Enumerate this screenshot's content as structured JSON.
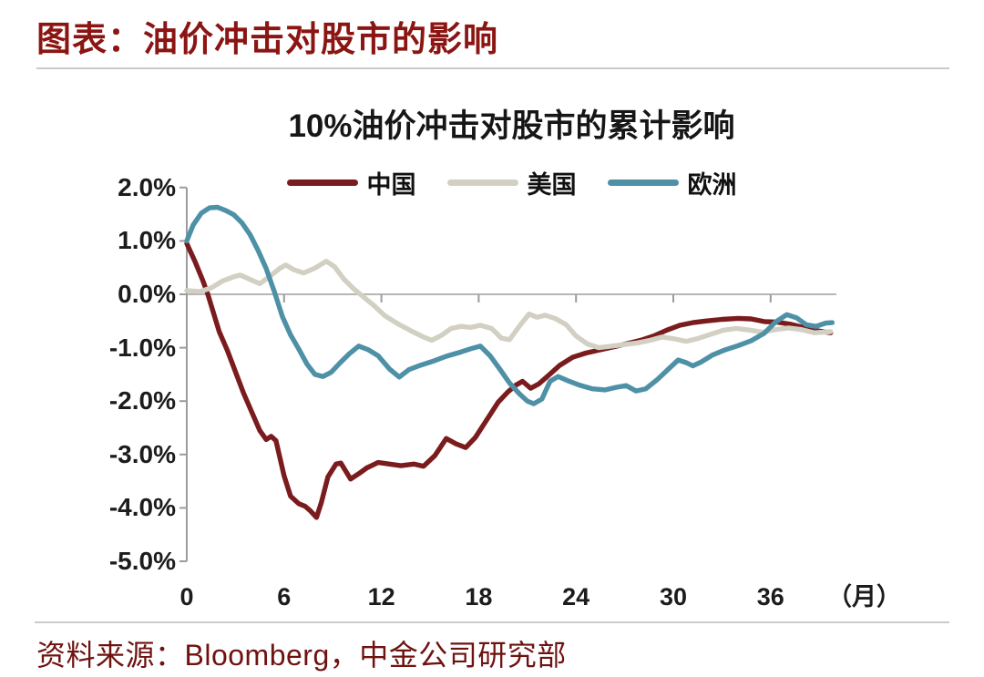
{
  "page": {
    "header_title": "图表：油价冲击对股市的影响",
    "source": "资料来源：Bloomberg，中金公司研究部"
  },
  "colors": {
    "header_text": "#8b1512",
    "source_text": "#6e1310",
    "axis": "#9c9c9c",
    "zero_line": "#ababab",
    "tick_text": "#1c1c1c"
  },
  "chart_data": {
    "type": "line",
    "title": "10%油价冲击对股市的累计影响",
    "xlabel": "（月）",
    "ylabel": "",
    "x_unit": "月",
    "xlim": [
      0,
      40
    ],
    "ylim": [
      -5.0,
      2.0
    ],
    "grid": "zero-line-only",
    "legend_position": "top",
    "y_ticks": [
      {
        "label": "2.0%",
        "value": 2
      },
      {
        "label": "1.0%",
        "value": 1
      },
      {
        "label": "0.0%",
        "value": 0
      },
      {
        "label": "-1.0%",
        "value": -1
      },
      {
        "label": "-2.0%",
        "value": -2
      },
      {
        "label": "-3.0%",
        "value": -3
      },
      {
        "label": "-4.0%",
        "value": -4
      },
      {
        "label": "-5.0%",
        "value": -5
      }
    ],
    "x_ticks": [
      {
        "label": "0",
        "value": 0
      },
      {
        "label": "6",
        "value": 6
      },
      {
        "label": "12",
        "value": 12
      },
      {
        "label": "18",
        "value": 18
      },
      {
        "label": "24",
        "value": 24
      },
      {
        "label": "30",
        "value": 30
      },
      {
        "label": "36",
        "value": 36
      }
    ],
    "series": [
      {
        "id": "china",
        "name": "中国",
        "color": "#7a1b1d",
        "points": [
          [
            0,
            0.95
          ],
          [
            0.5,
            0.62
          ],
          [
            1,
            0.25
          ],
          [
            1.3,
            0
          ],
          [
            2,
            -0.7
          ],
          [
            2.5,
            -1.05
          ],
          [
            3,
            -1.45
          ],
          [
            3.5,
            -1.85
          ],
          [
            4,
            -2.2
          ],
          [
            4.5,
            -2.55
          ],
          [
            4.9,
            -2.72
          ],
          [
            5.2,
            -2.66
          ],
          [
            5.5,
            -2.74
          ],
          [
            6,
            -3.4
          ],
          [
            6.4,
            -3.78
          ],
          [
            6.9,
            -3.92
          ],
          [
            7.3,
            -3.97
          ],
          [
            7.6,
            -4.05
          ],
          [
            8,
            -4.18
          ],
          [
            8.3,
            -3.9
          ],
          [
            8.7,
            -3.42
          ],
          [
            9.2,
            -3.18
          ],
          [
            9.5,
            -3.16
          ],
          [
            10.1,
            -3.46
          ],
          [
            10.6,
            -3.36
          ],
          [
            11.1,
            -3.25
          ],
          [
            11.8,
            -3.15
          ],
          [
            12.5,
            -3.18
          ],
          [
            13.2,
            -3.21
          ],
          [
            14,
            -3.18
          ],
          [
            14.6,
            -3.22
          ],
          [
            15.3,
            -3.02
          ],
          [
            16,
            -2.7
          ],
          [
            16.6,
            -2.8
          ],
          [
            17.2,
            -2.87
          ],
          [
            17.8,
            -2.68
          ],
          [
            18.5,
            -2.35
          ],
          [
            19.2,
            -2.02
          ],
          [
            19.8,
            -1.83
          ],
          [
            20.3,
            -1.7
          ],
          [
            20.7,
            -1.63
          ],
          [
            21.2,
            -1.76
          ],
          [
            21.7,
            -1.68
          ],
          [
            22.3,
            -1.52
          ],
          [
            23,
            -1.33
          ],
          [
            23.8,
            -1.18
          ],
          [
            24.6,
            -1.1
          ],
          [
            25.5,
            -1.04
          ],
          [
            26.4,
            -0.98
          ],
          [
            27.2,
            -0.92
          ],
          [
            28,
            -0.86
          ],
          [
            28.8,
            -0.78
          ],
          [
            29.6,
            -0.67
          ],
          [
            30.4,
            -0.58
          ],
          [
            31.2,
            -0.53
          ],
          [
            32,
            -0.5
          ],
          [
            33,
            -0.47
          ],
          [
            34,
            -0.45
          ],
          [
            34.8,
            -0.46
          ],
          [
            35.6,
            -0.51
          ],
          [
            36.4,
            -0.52
          ],
          [
            37.2,
            -0.56
          ],
          [
            38,
            -0.62
          ],
          [
            38.8,
            -0.68
          ],
          [
            39.7,
            -0.72
          ]
        ]
      },
      {
        "id": "us",
        "name": "美国",
        "color": "#d2d0c3",
        "points": [
          [
            0,
            0.07
          ],
          [
            0.8,
            0.05
          ],
          [
            1.5,
            0.12
          ],
          [
            2.2,
            0.25
          ],
          [
            2.9,
            0.33
          ],
          [
            3.3,
            0.36
          ],
          [
            3.9,
            0.28
          ],
          [
            4.5,
            0.2
          ],
          [
            5.1,
            0.33
          ],
          [
            5.7,
            0.48
          ],
          [
            6.1,
            0.55
          ],
          [
            6.6,
            0.46
          ],
          [
            7.2,
            0.4
          ],
          [
            7.9,
            0.49
          ],
          [
            8.6,
            0.62
          ],
          [
            9.1,
            0.52
          ],
          [
            9.7,
            0.28
          ],
          [
            10.3,
            0.1
          ],
          [
            10.9,
            -0.05
          ],
          [
            11.5,
            -0.2
          ],
          [
            12.2,
            -0.4
          ],
          [
            13,
            -0.55
          ],
          [
            13.8,
            -0.68
          ],
          [
            14.6,
            -0.8
          ],
          [
            15.1,
            -0.86
          ],
          [
            15.7,
            -0.77
          ],
          [
            16.3,
            -0.64
          ],
          [
            16.9,
            -0.6
          ],
          [
            17.5,
            -0.62
          ],
          [
            18.1,
            -0.58
          ],
          [
            18.8,
            -0.64
          ],
          [
            19.4,
            -0.82
          ],
          [
            19.9,
            -0.85
          ],
          [
            20.5,
            -0.6
          ],
          [
            21.1,
            -0.37
          ],
          [
            21.6,
            -0.43
          ],
          [
            22.1,
            -0.39
          ],
          [
            22.7,
            -0.45
          ],
          [
            23.4,
            -0.57
          ],
          [
            24,
            -0.78
          ],
          [
            24.7,
            -0.93
          ],
          [
            25.4,
            -1.0
          ],
          [
            26.2,
            -0.97
          ],
          [
            27,
            -0.94
          ],
          [
            27.8,
            -0.91
          ],
          [
            28.6,
            -0.86
          ],
          [
            29.3,
            -0.8
          ],
          [
            30,
            -0.83
          ],
          [
            30.8,
            -0.88
          ],
          [
            31.5,
            -0.83
          ],
          [
            32.3,
            -0.75
          ],
          [
            33.1,
            -0.67
          ],
          [
            33.9,
            -0.64
          ],
          [
            34.7,
            -0.67
          ],
          [
            35.5,
            -0.71
          ],
          [
            36.3,
            -0.66
          ],
          [
            37.1,
            -0.63
          ],
          [
            37.9,
            -0.66
          ],
          [
            38.7,
            -0.72
          ],
          [
            39.7,
            -0.7
          ]
        ]
      },
      {
        "id": "europe",
        "name": "欧洲",
        "color": "#4e91a7",
        "points": [
          [
            0,
            1.0
          ],
          [
            0.4,
            1.3
          ],
          [
            0.9,
            1.52
          ],
          [
            1.4,
            1.62
          ],
          [
            1.9,
            1.63
          ],
          [
            2.4,
            1.57
          ],
          [
            2.9,
            1.49
          ],
          [
            3.4,
            1.34
          ],
          [
            3.9,
            1.12
          ],
          [
            4.4,
            0.82
          ],
          [
            4.9,
            0.48
          ],
          [
            5.4,
            0.05
          ],
          [
            5.9,
            -0.42
          ],
          [
            6.4,
            -0.76
          ],
          [
            6.9,
            -1.02
          ],
          [
            7.4,
            -1.3
          ],
          [
            7.9,
            -1.5
          ],
          [
            8.4,
            -1.54
          ],
          [
            8.9,
            -1.46
          ],
          [
            9.4,
            -1.3
          ],
          [
            10,
            -1.12
          ],
          [
            10.6,
            -0.97
          ],
          [
            11.2,
            -1.04
          ],
          [
            11.8,
            -1.15
          ],
          [
            12.5,
            -1.4
          ],
          [
            13.1,
            -1.55
          ],
          [
            13.7,
            -1.41
          ],
          [
            14.4,
            -1.33
          ],
          [
            15.2,
            -1.25
          ],
          [
            16,
            -1.16
          ],
          [
            16.8,
            -1.09
          ],
          [
            17.5,
            -1.02
          ],
          [
            18.1,
            -0.97
          ],
          [
            18.7,
            -1.15
          ],
          [
            19.3,
            -1.4
          ],
          [
            19.9,
            -1.66
          ],
          [
            20.5,
            -1.86
          ],
          [
            21,
            -2.0
          ],
          [
            21.4,
            -2.05
          ],
          [
            21.9,
            -1.96
          ],
          [
            22.4,
            -1.63
          ],
          [
            22.9,
            -1.54
          ],
          [
            23.5,
            -1.62
          ],
          [
            24.2,
            -1.7
          ],
          [
            25,
            -1.77
          ],
          [
            25.8,
            -1.79
          ],
          [
            26.5,
            -1.74
          ],
          [
            27.1,
            -1.71
          ],
          [
            27.7,
            -1.81
          ],
          [
            28.3,
            -1.77
          ],
          [
            29,
            -1.6
          ],
          [
            29.7,
            -1.4
          ],
          [
            30.3,
            -1.23
          ],
          [
            30.8,
            -1.28
          ],
          [
            31.2,
            -1.34
          ],
          [
            31.7,
            -1.27
          ],
          [
            32.4,
            -1.14
          ],
          [
            33.2,
            -1.04
          ],
          [
            34,
            -0.96
          ],
          [
            34.8,
            -0.87
          ],
          [
            35.6,
            -0.73
          ],
          [
            36.3,
            -0.52
          ],
          [
            37,
            -0.38
          ],
          [
            37.6,
            -0.44
          ],
          [
            38.2,
            -0.57
          ],
          [
            38.8,
            -0.6
          ],
          [
            39.4,
            -0.54
          ],
          [
            39.8,
            -0.53
          ]
        ]
      }
    ]
  }
}
